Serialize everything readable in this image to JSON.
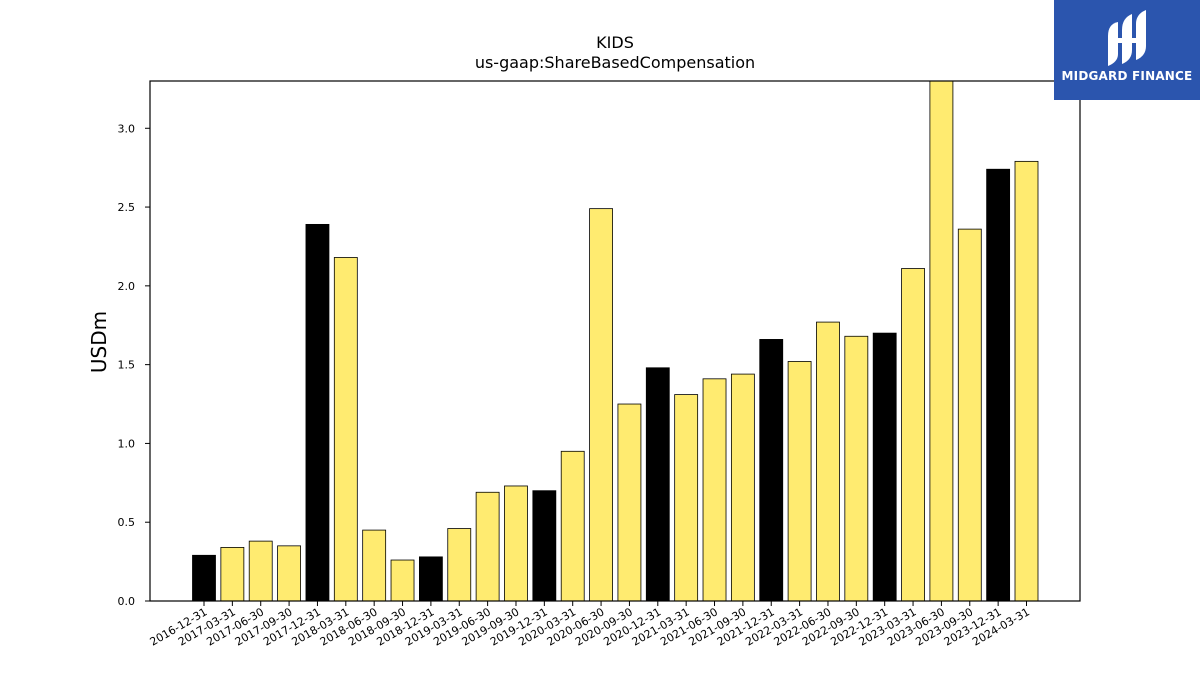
{
  "brand": {
    "name": "MIDGARD FINANCE",
    "logo_bg": "#2b55ae",
    "icon": "midgard-logo-icon"
  },
  "chart_data": {
    "type": "bar",
    "title": "KIDS",
    "subtitle": "us-gaap:ShareBasedCompensation",
    "xlabel": "",
    "ylabel": "USDm",
    "ylim": [
      0,
      3.3
    ],
    "yticks": [
      0.0,
      0.5,
      1.0,
      1.5,
      2.0,
      2.5,
      3.0
    ],
    "ytick_labels": [
      "0.0",
      "0.5",
      "1.0",
      "1.5",
      "2.0",
      "2.5",
      "3.0"
    ],
    "grid": false,
    "colors": {
      "q4": "#000000",
      "other": "#ffeb70",
      "edge": "#000000"
    },
    "categories": [
      "2016-12-31",
      "2017-03-31",
      "2017-06-30",
      "2017-09-30",
      "2017-12-31",
      "2018-03-31",
      "2018-06-30",
      "2018-09-30",
      "2018-12-31",
      "2019-03-31",
      "2019-06-30",
      "2019-09-30",
      "2019-12-31",
      "2020-03-31",
      "2020-06-30",
      "2020-09-30",
      "2020-12-31",
      "2021-03-31",
      "2021-06-30",
      "2021-09-30",
      "2021-12-31",
      "2022-03-31",
      "2022-06-30",
      "2022-09-30",
      "2022-12-31",
      "2023-03-31",
      "2023-06-30",
      "2023-09-30",
      "2023-12-31",
      "2024-03-31"
    ],
    "values": [
      0.29,
      0.34,
      0.38,
      0.35,
      2.39,
      2.18,
      0.45,
      0.26,
      0.28,
      0.46,
      0.69,
      0.73,
      0.7,
      0.95,
      2.49,
      1.25,
      1.48,
      1.31,
      1.41,
      1.44,
      1.66,
      1.52,
      1.77,
      1.68,
      1.7,
      2.11,
      3.3,
      2.36,
      2.74,
      2.79
    ]
  }
}
